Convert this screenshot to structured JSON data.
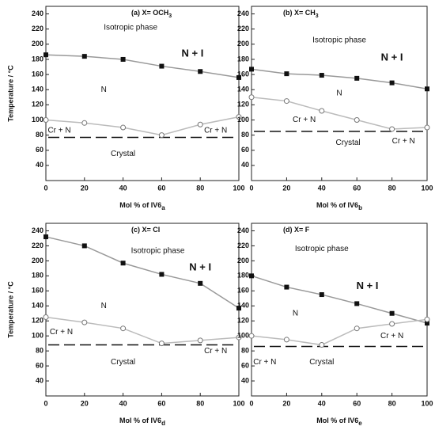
{
  "chart_data": [
    {
      "type": "line",
      "title": "(a) X= OCH",
      "title_subscript": "3",
      "y_label": "Temperature / °C",
      "x_label": "Mol % of IV6",
      "x_label_subscript": "a",
      "x": [
        0,
        20,
        40,
        60,
        80,
        100
      ],
      "xlim": [
        0,
        100
      ],
      "xticks": [
        0,
        20,
        40,
        60,
        80,
        100
      ],
      "ylim": [
        20,
        250
      ],
      "yticks": [
        40,
        60,
        80,
        100,
        120,
        140,
        160,
        180,
        200,
        220,
        240
      ],
      "series": [
        {
          "color": "#999999",
          "marker": "filled",
          "values": [
            186,
            184,
            180,
            171,
            164,
            156
          ]
        },
        {
          "color": "#bbbbbb",
          "marker": "open",
          "values": [
            100,
            96,
            90,
            80,
            94,
            104
          ]
        }
      ],
      "dashed_line": 77,
      "annotations": [
        "Isotropic phase",
        "N + I",
        "N",
        "Cr + N",
        "Cr + N",
        "Crystal"
      ]
    },
    {
      "type": "line",
      "title": "(b) X= CH",
      "title_subscript": "3",
      "x_label": "Mol % of IV6",
      "x_label_subscript": "b",
      "x": [
        0,
        20,
        40,
        60,
        80,
        100
      ],
      "xlim": [
        0,
        100
      ],
      "xticks": [
        0,
        20,
        40,
        60,
        80,
        100
      ],
      "ylim": [
        20,
        250
      ],
      "yticks": [
        40,
        60,
        80,
        100,
        120,
        140,
        160,
        180,
        200,
        220,
        240
      ],
      "series": [
        {
          "color": "#999999",
          "marker": "filled",
          "values": [
            167,
            161,
            159,
            155,
            149,
            141
          ]
        },
        {
          "color": "#bbbbbb",
          "marker": "open",
          "values": [
            130,
            125,
            112,
            100,
            88,
            90
          ]
        }
      ],
      "dashed_line": 85,
      "annotations": [
        "Isotropic phase",
        "N + I",
        "N",
        "Cr + N",
        "Crystal",
        "Cr + N"
      ]
    },
    {
      "type": "line",
      "title": "(c) X= Cl",
      "y_label": "Temperature / °C",
      "x_label": "Mol % of IV6",
      "x_label_subscript": "d",
      "x": [
        0,
        20,
        40,
        60,
        80,
        100
      ],
      "xlim": [
        0,
        100
      ],
      "xticks": [
        0,
        20,
        40,
        60,
        80,
        100
      ],
      "ylim": [
        20,
        250
      ],
      "yticks": [
        40,
        60,
        80,
        100,
        120,
        140,
        160,
        180,
        200,
        220,
        240
      ],
      "series": [
        {
          "color": "#999999",
          "marker": "filled",
          "values": [
            232,
            220,
            197,
            182,
            170,
            137
          ]
        },
        {
          "color": "#bbbbbb",
          "marker": "open",
          "values": [
            125,
            118,
            110,
            90,
            94,
            98
          ]
        }
      ],
      "dashed_line": 88,
      "annotations": [
        "Isotropic phase",
        "N + I",
        "N",
        "Cr + N",
        "Crystal",
        "Cr + N"
      ]
    },
    {
      "type": "line",
      "title": "(d) X= F",
      "x_label": "Mol % of IV6",
      "x_label_subscript": "e",
      "x": [
        0,
        20,
        40,
        60,
        80,
        100
      ],
      "xlim": [
        0,
        100
      ],
      "xticks": [
        0,
        20,
        40,
        60,
        80,
        100
      ],
      "ylim": [
        20,
        250
      ],
      "yticks": [
        40,
        60,
        80,
        100,
        120,
        140,
        160,
        180,
        200,
        220,
        240
      ],
      "series": [
        {
          "color": "#999999",
          "marker": "filled",
          "values": [
            180,
            165,
            155,
            143,
            130,
            117
          ]
        },
        {
          "color": "#bbbbbb",
          "marker": "open",
          "values": [
            100,
            95,
            88,
            110,
            116,
            122
          ]
        }
      ],
      "dashed_line": 86,
      "annotations": [
        "Isotropic phase",
        "N + I",
        "N",
        "Cr + N",
        "Crystal",
        "Cr + N"
      ]
    }
  ]
}
